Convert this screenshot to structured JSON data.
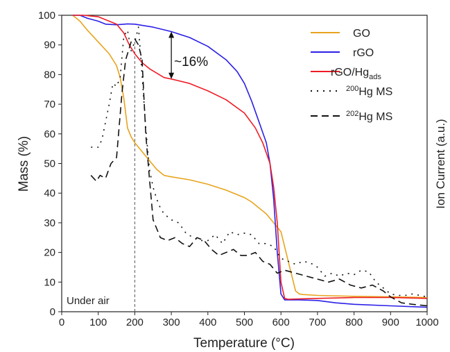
{
  "chart_data": {
    "type": "line",
    "xlabel": "Temperature (°C)",
    "ylabel": "Mass (%)",
    "y2label": "Ion Current (a.u.)",
    "xlim": [
      0,
      1000
    ],
    "ylim": [
      0,
      100
    ],
    "xticks": [
      "0",
      "100",
      "200",
      "300",
      "400",
      "500",
      "600",
      "700",
      "800",
      "900",
      "1000"
    ],
    "yticks": [
      "0",
      "10",
      "20",
      "30",
      "40",
      "50",
      "60",
      "70",
      "80",
      "90",
      "100"
    ],
    "grid": false,
    "legend_position": "top-right",
    "series": [
      {
        "name": "GO",
        "color": "#e8a31c",
        "style": "solid",
        "x": [
          30,
          50,
          70,
          100,
          130,
          150,
          160,
          170,
          180,
          190,
          200,
          220,
          240,
          260,
          280,
          300,
          350,
          400,
          450,
          500,
          520,
          540,
          560,
          580,
          600,
          620,
          640,
          650,
          660,
          700,
          800,
          900,
          1000
        ],
        "y": [
          100,
          98,
          95,
          91,
          87,
          83,
          79,
          72,
          62,
          59,
          57,
          54,
          51,
          48,
          46,
          45.5,
          44.5,
          43,
          41,
          38.5,
          37,
          35,
          33,
          30,
          27,
          17,
          7,
          6,
          5.8,
          5.5,
          5.2,
          5,
          4.8
        ]
      },
      {
        "name": "rGO",
        "color": "#2b1fe6",
        "style": "solid",
        "x": [
          30,
          50,
          70,
          100,
          120,
          150,
          180,
          200,
          250,
          300,
          350,
          400,
          450,
          480,
          500,
          520,
          540,
          560,
          570,
          580,
          590,
          600,
          610,
          620,
          650,
          700,
          750,
          800,
          900,
          1000
        ],
        "y": [
          100,
          100,
          99,
          98,
          97,
          96.8,
          97.1,
          97,
          96,
          94.5,
          92.5,
          89.5,
          85,
          81,
          77,
          71,
          64,
          57,
          50,
          38,
          20,
          6,
          4,
          4,
          4,
          3.8,
          3,
          2.5,
          2,
          1.5
        ]
      },
      {
        "name": "rGO/Hg_ads",
        "color": "#ee1c25",
        "style": "solid",
        "x": [
          30,
          60,
          100,
          130,
          150,
          170,
          185,
          200,
          220,
          240,
          260,
          280,
          300,
          350,
          400,
          450,
          500,
          530,
          550,
          570,
          580,
          590,
          600,
          610,
          620,
          650,
          700,
          800,
          900,
          1000
        ],
        "y": [
          100,
          100,
          99.5,
          98,
          97,
          94,
          90,
          87,
          84,
          82,
          80.5,
          79,
          78.5,
          77,
          74.5,
          71.5,
          67,
          62,
          57,
          50,
          42,
          30,
          10,
          4.5,
          4.2,
          4.3,
          4.5,
          4.8,
          4.8,
          4.5
        ]
      },
      {
        "name": "²⁰⁰Hg MS",
        "color": "#111111",
        "style": "dotted",
        "x": [
          80,
          100,
          110,
          120,
          130,
          140,
          150,
          160,
          170,
          180,
          190,
          200,
          210,
          220,
          230,
          240,
          250,
          260,
          270,
          280,
          300,
          320,
          340,
          360,
          380,
          400,
          420,
          440,
          460,
          480,
          500,
          520,
          540,
          560,
          580,
          600,
          620,
          640,
          660,
          680,
          700,
          720,
          740,
          760,
          780,
          800,
          820,
          840,
          860,
          880,
          900,
          920,
          940,
          960,
          1000
        ],
        "y": [
          55.5,
          55.5,
          58,
          64,
          70,
          77,
          76,
          79,
          93,
          95,
          88,
          91,
          96,
          80,
          62,
          48,
          42,
          38,
          35,
          33,
          31,
          30,
          26.5,
          25,
          24,
          24,
          26,
          23,
          27,
          26,
          26.5,
          26,
          23,
          23,
          22,
          18,
          17,
          16,
          17,
          16.5,
          15,
          12,
          13,
          12,
          13,
          12.5,
          14,
          13.5,
          10,
          8,
          6,
          5.5,
          5.5,
          6,
          5
        ]
      },
      {
        "name": "²⁰²Hg MS",
        "color": "#111111",
        "style": "dashed",
        "x": [
          80,
          95,
          105,
          120,
          135,
          150,
          165,
          175,
          180,
          190,
          200,
          210,
          220,
          230,
          240,
          250,
          270,
          290,
          310,
          330,
          350,
          370,
          390,
          410,
          430,
          450,
          470,
          490,
          510,
          530,
          550,
          570,
          590,
          610,
          640,
          670,
          700,
          730,
          760,
          790,
          820,
          850,
          880,
          900,
          930,
          960,
          1000
        ],
        "y": [
          46,
          44,
          46,
          45,
          50,
          52,
          74,
          85,
          87,
          91,
          92,
          90,
          85,
          60,
          45,
          31,
          25,
          24,
          25,
          23,
          22,
          25,
          24,
          21,
          19,
          20,
          21,
          19,
          19,
          20,
          17,
          16,
          13,
          14,
          13,
          12,
          11,
          10,
          11,
          9,
          8,
          9,
          7,
          5,
          3,
          2.5,
          2
        ]
      }
    ],
    "annotations": {
      "delta_label": "~16%",
      "delta_x": 300,
      "delta_y_top": 94.5,
      "delta_y_bottom": 78.5,
      "condition_label": "Under air",
      "vline_x": 200
    }
  }
}
